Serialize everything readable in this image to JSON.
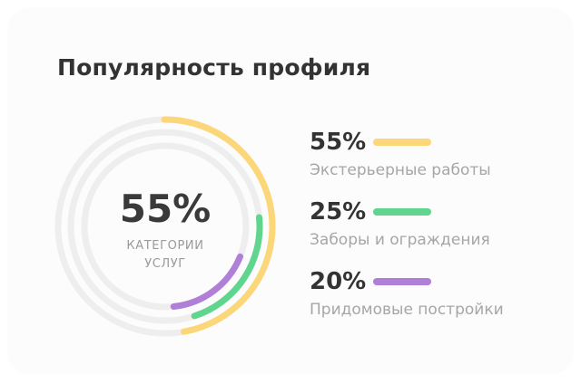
{
  "title": "Популярность профиля",
  "center": {
    "value": "55%",
    "caption": "КАТЕГОРИИ УСЛУГ"
  },
  "colors": {
    "track": "#eeeeee",
    "series": [
      "#fcd77a",
      "#5fd58d",
      "#b07fd8"
    ]
  },
  "chart_data": {
    "type": "pie",
    "title": "Популярность профиля",
    "series": [
      {
        "name": "Экстерьерные работы",
        "value": 55,
        "label": "55%",
        "color": "#fcd77a"
      },
      {
        "name": "Заборы и ограждения",
        "value": 25,
        "label": "25%",
        "color": "#5fd58d"
      },
      {
        "name": "Придомовые постройки",
        "value": 20,
        "label": "20%",
        "color": "#b07fd8"
      }
    ],
    "center_value": "55%",
    "center_caption": "КАТЕГОРИИ УСЛУГ",
    "legend": "right"
  }
}
